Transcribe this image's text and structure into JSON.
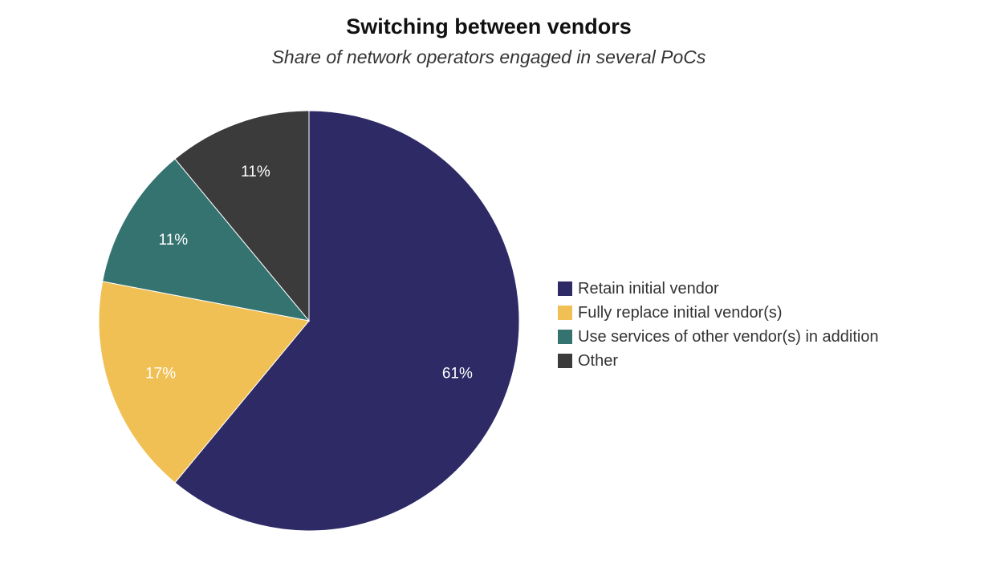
{
  "chart_data": {
    "type": "pie",
    "title": "Switching between vendors",
    "subtitle": "Share of network operators engaged in several PoCs",
    "unit": "%",
    "legend_position": "right",
    "slices": [
      {
        "label": "Retain initial vendor",
        "value": 61,
        "display": "61%",
        "color": "#2d2a66"
      },
      {
        "label": "Fully replace initial vendor(s)",
        "value": 17,
        "display": "17%",
        "color": "#f1c055"
      },
      {
        "label": "Use services of other vendor(s) in addition",
        "value": 11,
        "display": "11%",
        "color": "#347370"
      },
      {
        "label": "Other",
        "value": 11,
        "display": "11%",
        "color": "#3b3b3b"
      }
    ]
  }
}
